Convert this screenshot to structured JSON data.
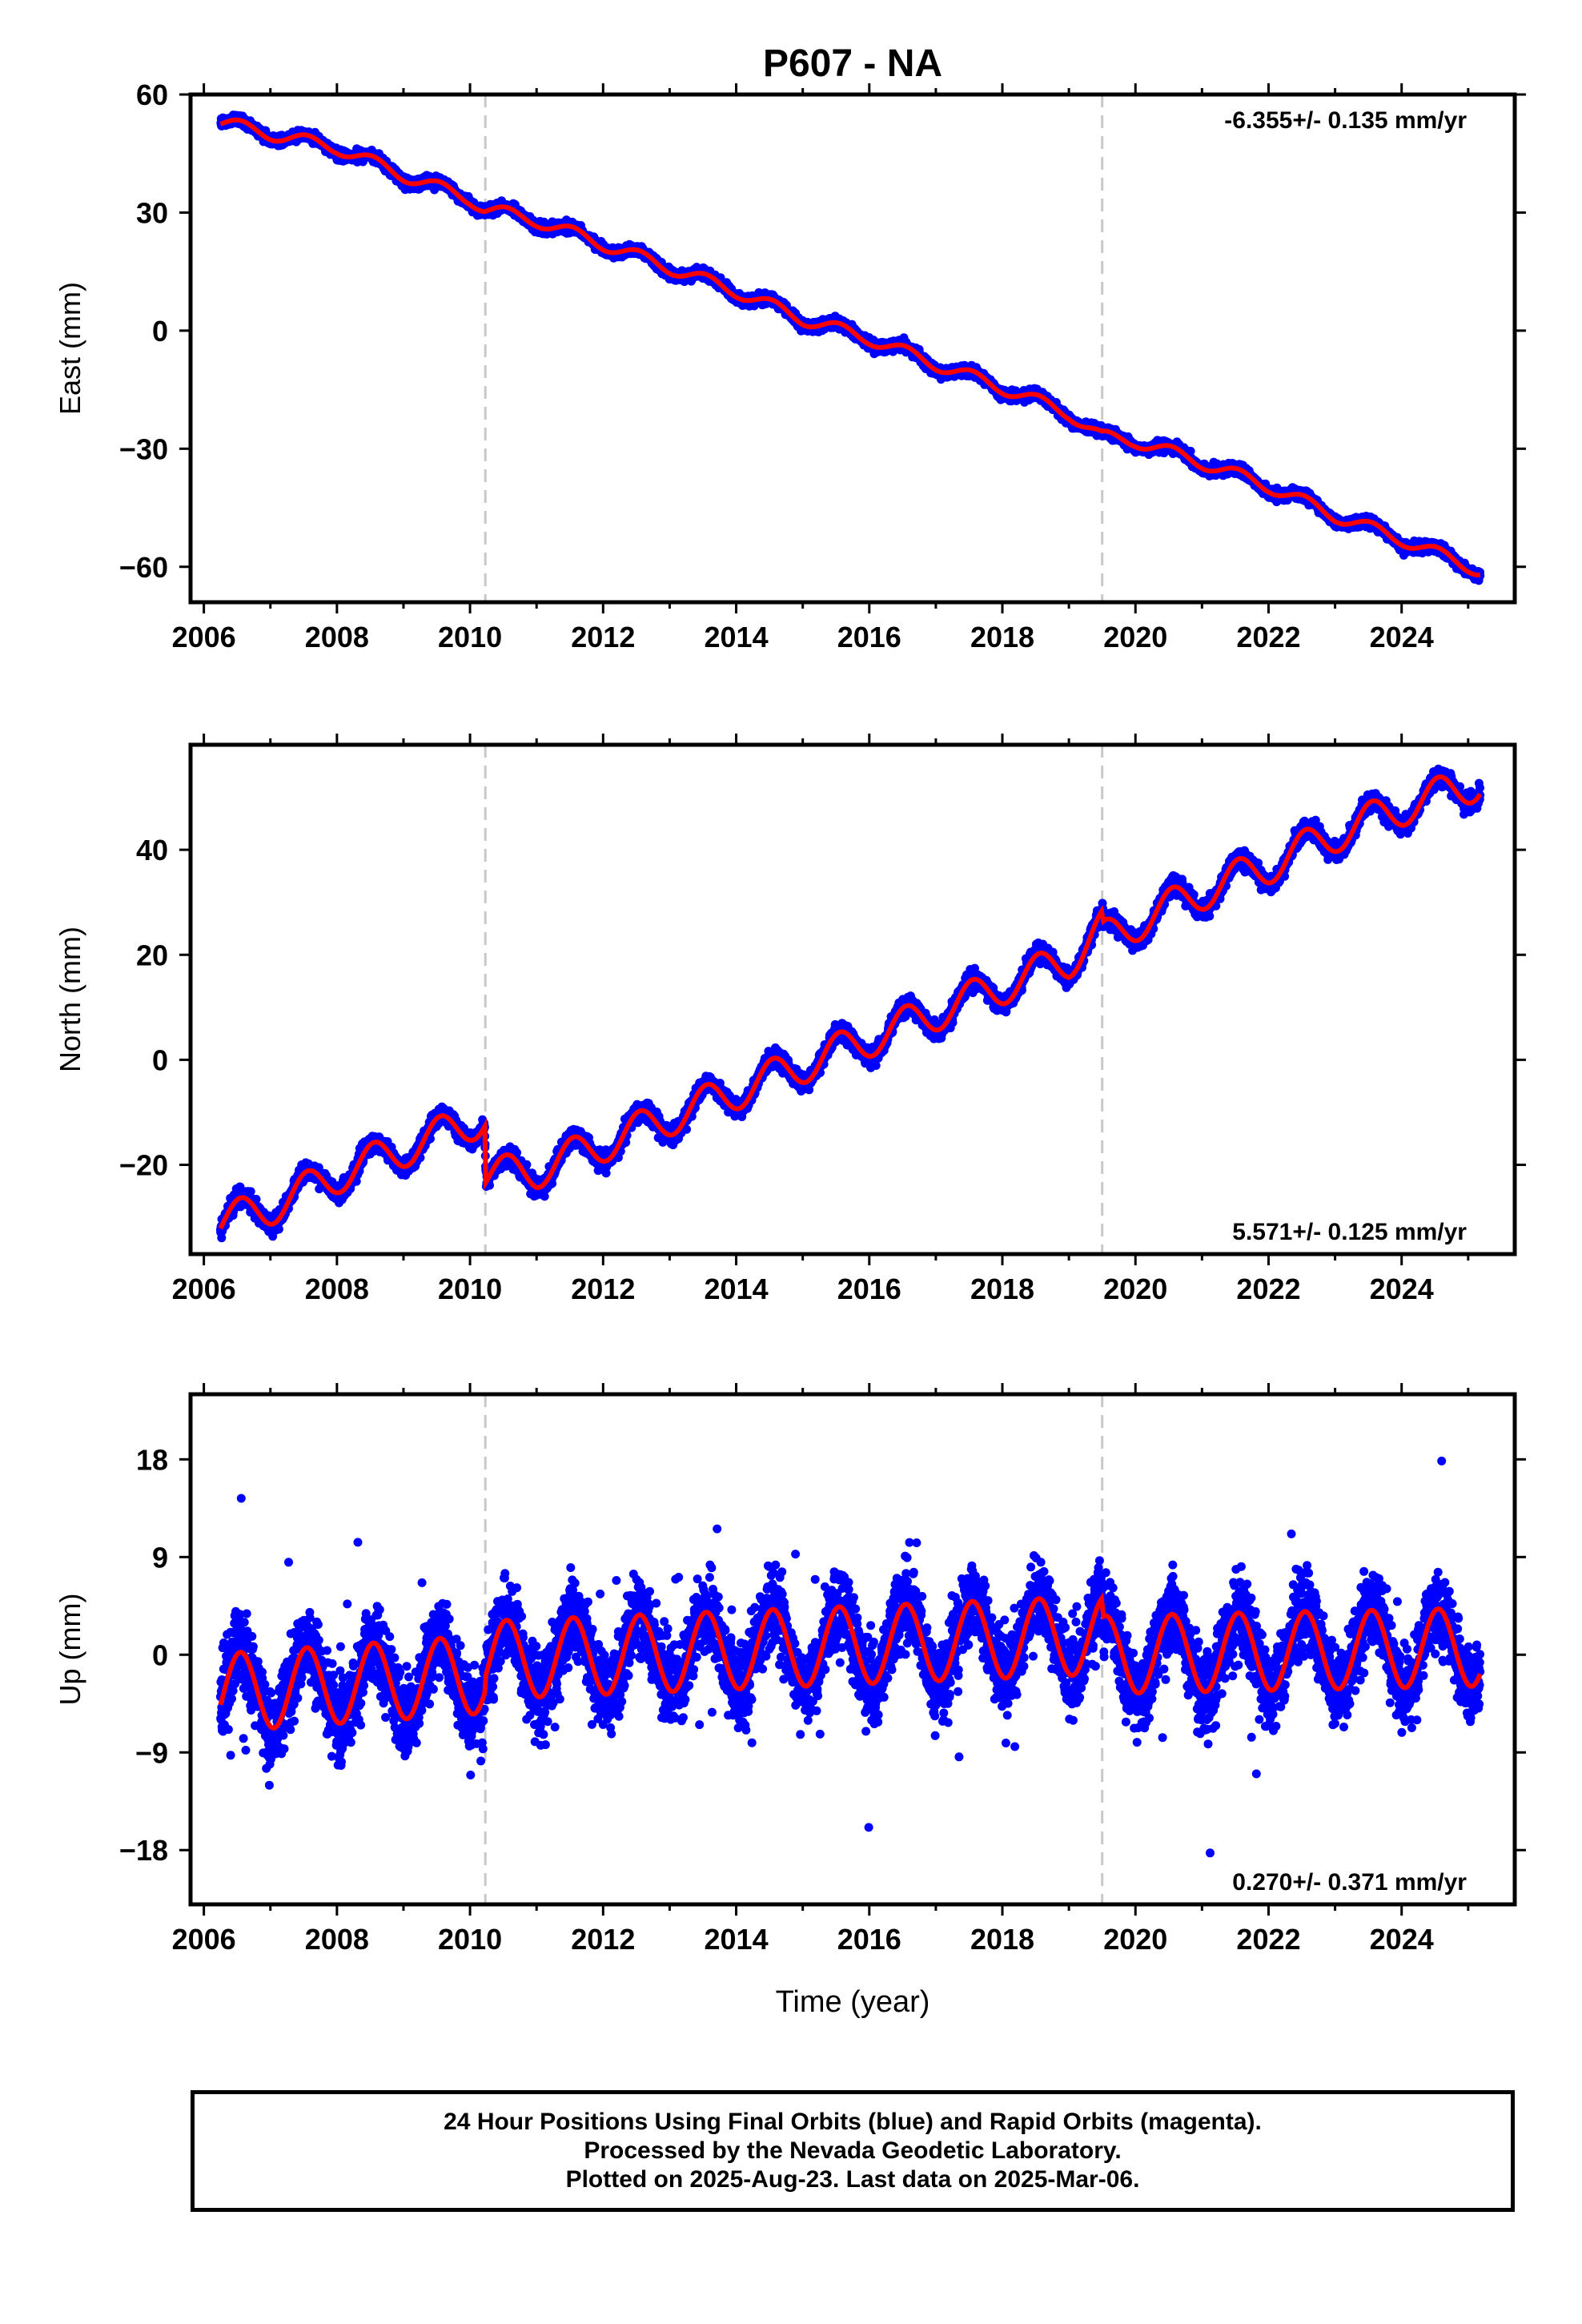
{
  "title": "P607 - NA",
  "colors": {
    "data": "#0000ff",
    "model": "#ff0000",
    "frame": "#000000",
    "event_line": "#c8c8c8"
  },
  "x_axis": {
    "label": "Time (year)",
    "range": [
      2005.8,
      2025.7
    ],
    "ticks": [
      "2006",
      "2008",
      "2010",
      "2012",
      "2014",
      "2016",
      "2018",
      "2020",
      "2022",
      "2024"
    ]
  },
  "event_lines": [
    2010.23,
    2019.5
  ],
  "caption": [
    "24 Hour Positions Using Final Orbits (blue) and Rapid Orbits (magenta).",
    "Processed by the Nevada Geodetic Laboratory.",
    "Plotted on 2025-Aug-23. Last data on 2025-Mar-06."
  ],
  "chart_data": [
    {
      "type": "scatter",
      "ylabel": "East (mm)",
      "ylim": [
        -69,
        60
      ],
      "yticks": [
        "60",
        "30",
        "0",
        "−30",
        "−60"
      ],
      "rate_label": "-6.355+/- 0.135 mm/yr",
      "rate_position": "top-right",
      "series": [
        {
          "name": "Final Orbits",
          "style": "points"
        },
        {
          "name": "Model",
          "style": "line",
          "x": [
            2006.25,
            2007.0,
            2008.0,
            2009.0,
            2010.0,
            2010.22,
            2011.0,
            2012.0,
            2013.0,
            2014.0,
            2015.0,
            2016.0,
            2017.0,
            2018.0,
            2019.0,
            2019.49,
            2020.0,
            2021.0,
            2022.0,
            2023.0,
            2024.0,
            2025.18
          ],
          "y": [
            53,
            50,
            46.5,
            39.5,
            33.5,
            31,
            28,
            22,
            16,
            10,
            3,
            -2,
            -8.5,
            -14.5,
            -21,
            -27,
            -28,
            -33.5,
            -39.5,
            -47,
            -53,
            -61
          ],
          "seasonal_amplitude": 1.6
        }
      ]
    },
    {
      "type": "scatter",
      "ylabel": "North (mm)",
      "ylim": [
        -37,
        60
      ],
      "yticks": [
        "40",
        "20",
        "0",
        "−20"
      ],
      "rate_label": "5.571+/- 0.125 mm/yr",
      "rate_position": "bottom-right",
      "series": [
        {
          "name": "Final Orbits",
          "style": "points"
        },
        {
          "name": "Model",
          "style": "line",
          "x": [
            2006.25,
            2007.0,
            2008.0,
            2009.0,
            2010.0,
            2010.22,
            2010.24,
            2011.0,
            2012.0,
            2013.0,
            2014.0,
            2015.0,
            2016.0,
            2017.0,
            2018.0,
            2019.0,
            2019.49,
            2019.52,
            2020.0,
            2021.0,
            2022.0,
            2023.0,
            2024.0,
            2025.18
          ],
          "y": [
            -31,
            -28,
            -22,
            -17,
            -12,
            -11,
            -22,
            -21,
            -16,
            -11,
            -6,
            -1,
            4,
            9,
            14,
            19,
            25,
            23,
            26,
            32,
            37,
            43,
            48,
            53
          ],
          "seasonal_amplitude": 3.5
        }
      ]
    },
    {
      "type": "scatter",
      "ylabel": "Up (mm)",
      "ylim": [
        -23,
        24
      ],
      "yticks": [
        "18",
        "9",
        "0",
        "−9",
        "−18"
      ],
      "rate_label": "0.270+/- 0.371 mm/yr",
      "rate_position": "bottom-right",
      "series": [
        {
          "name": "Final Orbits",
          "style": "points"
        },
        {
          "name": "Model",
          "style": "line",
          "x": [
            2006.25,
            2010.22,
            2010.24,
            2019.49,
            2019.52,
            2025.18
          ],
          "y": [
            -3.5,
            -1.8,
            -0.5,
            1.8,
            0.0,
            0.7
          ],
          "seasonal_amplitude": 3.6
        }
      ]
    }
  ]
}
